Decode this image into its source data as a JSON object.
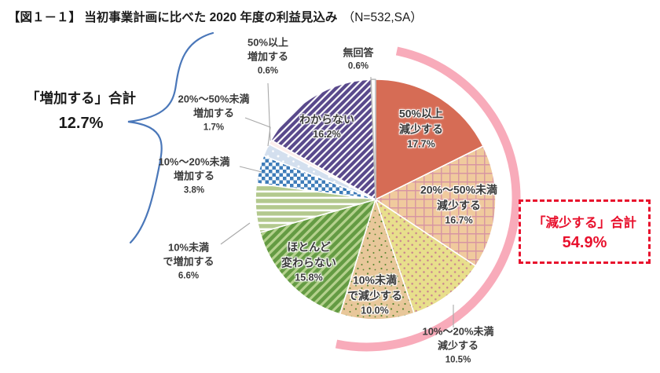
{
  "header": {
    "title_main": "【図１－１】 当初事業計画に比べた 2020 年度の利益見込み",
    "title_n": "（N=532,SA）"
  },
  "increase_total": {
    "label": "「増加する」合計",
    "value": "12.7%"
  },
  "decrease_total": {
    "label": "「減少する」合計",
    "value": "54.9%"
  },
  "palette": {
    "salmon": "#d66c55",
    "peach_base": "#f0ca9d",
    "peach_grid_line": "#d795a2",
    "yellow_base": "#e8df8c",
    "yellow_dot": "#c9838f",
    "tan_base": "#e8c79a",
    "tan_speck": "#55842e",
    "green_stripe_light": "#b4d18d",
    "green_stripe_dark": "#649b43",
    "sage_base": "#b3c98e",
    "checker_blue": "#3e7cb9",
    "lightblue_base": "#d3dfee",
    "purple_stripe": "#5a4a8c",
    "arc_pink": "#f8abba",
    "box_red": "#e8112d",
    "brace_blue": "#4a77b9",
    "leader_gray": "#a9a9a9"
  },
  "chart_data": {
    "type": "pie",
    "title": "当初事業計画に比べた2020年度の利益見込み",
    "sample": "N=532,SA",
    "start_angle_deg": 0,
    "direction": "clockwise",
    "slices": [
      {
        "key": "decrease-50plus",
        "label": "50%以上減少する",
        "label_lines": [
          "50%以上",
          "減少する"
        ],
        "pct": "17.7%",
        "value": 17.7,
        "pattern": "salmon",
        "label_pos": "inside"
      },
      {
        "key": "decrease-20-50",
        "label": "20%～50%未満減少する",
        "label_lines": [
          "20%～50%未満",
          "減少する"
        ],
        "pct": "16.7%",
        "value": 16.7,
        "pattern": "peach-grid",
        "label_pos": "inside"
      },
      {
        "key": "decrease-10-20",
        "label": "10%～20%未満減少する",
        "label_lines": [
          "10%～20%未満",
          "減少する"
        ],
        "pct": "10.5%",
        "value": 10.5,
        "pattern": "yellow-diagdots",
        "label_pos": "outside"
      },
      {
        "key": "decrease-under10",
        "label": "10%未満で減少する",
        "label_lines": [
          "10%未満",
          "で減少する"
        ],
        "pct": "10.0%",
        "value": 10.0,
        "pattern": "tan-specks",
        "label_pos": "inside"
      },
      {
        "key": "unchanged",
        "label": "ほとんど変わらない",
        "label_lines": [
          "ほとんど",
          "変わらない"
        ],
        "pct": "15.8%",
        "value": 15.8,
        "pattern": "green-diagstripes",
        "label_pos": "inside"
      },
      {
        "key": "increase-under10",
        "label": "10%未満で増加する",
        "label_lines": [
          "10%未満",
          "で増加する"
        ],
        "pct": "6.6%",
        "value": 6.6,
        "pattern": "sage-hstripes",
        "label_pos": "outside"
      },
      {
        "key": "increase-10-20",
        "label": "10%～20%未満増加する",
        "label_lines": [
          "10%～20%未満",
          "増加する"
        ],
        "pct": "3.8%",
        "value": 3.8,
        "pattern": "blue-checker",
        "label_pos": "outside"
      },
      {
        "key": "increase-20-50",
        "label": "20%～50%未満増加する",
        "label_lines": [
          "20%～50%未満",
          "増加する"
        ],
        "pct": "1.7%",
        "value": 1.7,
        "pattern": "lightblue-dots",
        "label_pos": "outside"
      },
      {
        "key": "increase-50plus",
        "label": "50%以上増加する",
        "label_lines": [
          "50%以上",
          "増加する"
        ],
        "pct": "0.6%",
        "value": 0.6,
        "pattern": "pink-white",
        "label_pos": "outside"
      },
      {
        "key": "dont-know",
        "label": "わからない",
        "label_lines": [
          "わからない"
        ],
        "pct": "16.2%",
        "value": 16.2,
        "pattern": "purple-diagstripes",
        "label_pos": "inside"
      },
      {
        "key": "no-answer",
        "label": "無回答",
        "label_lines": [
          "無回答"
        ],
        "pct": "0.6%",
        "value": 0.6,
        "pattern": "white",
        "stroke": "#bbbbbb",
        "label_pos": "outside"
      }
    ],
    "annotations": [
      {
        "text": "「増加する」合計 12.7%",
        "covers": [
          "increase-under10",
          "increase-10-20",
          "increase-20-50",
          "increase-50plus"
        ]
      },
      {
        "text": "「減少する」合計 54.9%",
        "covers": [
          "decrease-50plus",
          "decrease-20-50",
          "decrease-10-20",
          "decrease-under10"
        ]
      }
    ]
  }
}
